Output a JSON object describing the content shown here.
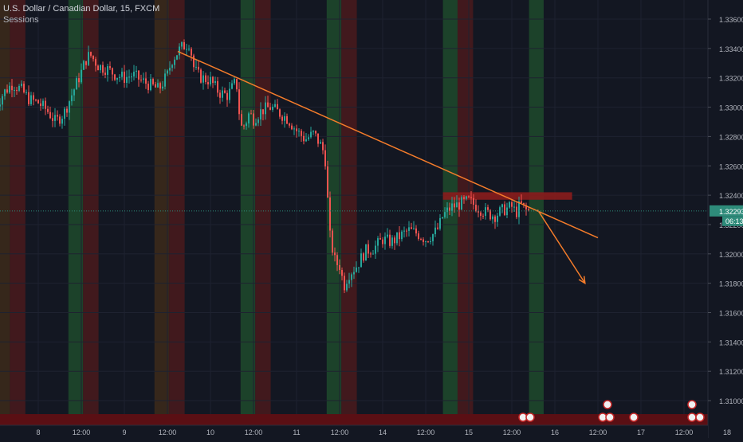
{
  "header": {
    "title": "U.S. Dollar / Canadian Dollar, 15, FXCM",
    "study": "Sessions"
  },
  "price_tag": {
    "value": "1.32293",
    "countdown": "06:13"
  },
  "colors": {
    "background": "#131722",
    "up": "#26a69a",
    "down": "#ef5350",
    "session_green": "#1f4a2c",
    "session_red": "#4a1a1c",
    "session_orange": "#3d2a1a",
    "trendline": "#f57c2a",
    "resistance_zone": "#8a1c1c",
    "price_line": "#2e8b7a",
    "axis_text": "#b2b5be"
  },
  "chart_data": {
    "type": "candlestick",
    "symbol": "USDCAD",
    "timeframe": "15",
    "source": "FXCM",
    "y_axis": {
      "range": [
        1.3085,
        1.3375
      ],
      "tick_labels": [
        "1.33600",
        "1.33400",
        "1.33200",
        "1.33000",
        "1.32800",
        "1.32600",
        "1.32400",
        "1.32200",
        "1.32000",
        "1.31800",
        "1.31600",
        "1.31400",
        "1.31200",
        "1.31000"
      ],
      "ticks": [
        1.336,
        1.334,
        1.332,
        1.33,
        1.328,
        1.326,
        1.324,
        1.322,
        1.32,
        1.318,
        1.316,
        1.314,
        1.312,
        1.31
      ]
    },
    "x_axis": {
      "tick_labels": [
        "8",
        "12:00",
        "9",
        "12:00",
        "10",
        "12:00",
        "11",
        "12:00",
        "14",
        "12:00",
        "15",
        "12:00",
        "16",
        "12:00",
        "17",
        "12:00",
        "18"
      ],
      "tick_positions": [
        0.5,
        1,
        1.5,
        2,
        2.5,
        3,
        3.5,
        4,
        4.5,
        5,
        5.5,
        6,
        6.5,
        7,
        7.5,
        8,
        8.5
      ],
      "unit": "days (0.5 = 12h)"
    },
    "price_path": [
      [
        0.0,
        1.33
      ],
      [
        0.1,
        1.331
      ],
      [
        0.2,
        1.3316
      ],
      [
        0.3,
        1.3312
      ],
      [
        0.4,
        1.3305
      ],
      [
        0.5,
        1.3303
      ],
      [
        0.6,
        1.3298
      ],
      [
        0.7,
        1.329
      ],
      [
        0.8,
        1.3296
      ],
      [
        0.9,
        1.331
      ],
      [
        1.0,
        1.3324
      ],
      [
        1.05,
        1.3332
      ],
      [
        1.1,
        1.3336
      ],
      [
        1.15,
        1.3332
      ],
      [
        1.2,
        1.3328
      ],
      [
        1.3,
        1.3326
      ],
      [
        1.4,
        1.3322
      ],
      [
        1.5,
        1.332
      ],
      [
        1.6,
        1.3322
      ],
      [
        1.7,
        1.3318
      ],
      [
        1.8,
        1.3315
      ],
      [
        1.9,
        1.3312
      ],
      [
        2.0,
        1.3322
      ],
      [
        2.05,
        1.3332
      ],
      [
        2.1,
        1.3336
      ],
      [
        2.15,
        1.334
      ],
      [
        2.2,
        1.3342
      ],
      [
        2.25,
        1.3344
      ],
      [
        2.28,
        1.3336
      ],
      [
        2.3,
        1.3328
      ],
      [
        2.35,
        1.3322
      ],
      [
        2.4,
        1.332
      ],
      [
        2.5,
        1.3318
      ],
      [
        2.6,
        1.331
      ],
      [
        2.7,
        1.3308
      ],
      [
        2.8,
        1.3318
      ],
      [
        2.85,
        1.3286
      ],
      [
        2.9,
        1.3288
      ],
      [
        2.95,
        1.3296
      ],
      [
        3.0,
        1.3292
      ],
      [
        3.1,
        1.3298
      ],
      [
        3.2,
        1.33
      ],
      [
        3.3,
        1.3296
      ],
      [
        3.4,
        1.3292
      ],
      [
        3.5,
        1.3284
      ],
      [
        3.6,
        1.3278
      ],
      [
        3.7,
        1.3282
      ],
      [
        3.8,
        1.3272
      ],
      [
        3.85,
        1.326
      ],
      [
        3.87,
        1.3218
      ],
      [
        3.9,
        1.3208
      ],
      [
        3.95,
        1.3194
      ],
      [
        4.0,
        1.3192
      ],
      [
        4.05,
        1.3178
      ],
      [
        4.1,
        1.3186
      ],
      [
        4.2,
        1.3192
      ],
      [
        4.3,
        1.3202
      ],
      [
        4.4,
        1.3204
      ],
      [
        4.5,
        1.321
      ],
      [
        4.6,
        1.3208
      ],
      [
        4.7,
        1.3212
      ],
      [
        4.8,
        1.3216
      ],
      [
        4.9,
        1.3214
      ],
      [
        5.0,
        1.321
      ],
      [
        5.1,
        1.3214
      ],
      [
        5.15,
        1.3218
      ],
      [
        5.2,
        1.3226
      ],
      [
        5.3,
        1.3232
      ],
      [
        5.4,
        1.3234
      ],
      [
        5.5,
        1.3236
      ],
      [
        5.6,
        1.3232
      ],
      [
        5.7,
        1.3228
      ],
      [
        5.8,
        1.3226
      ],
      [
        5.9,
        1.323
      ],
      [
        6.0,
        1.3232
      ],
      [
        6.05,
        1.3228
      ],
      [
        6.1,
        1.3234
      ],
      [
        6.15,
        1.323
      ],
      [
        6.2,
        1.3229
      ]
    ],
    "sessions": [
      {
        "start": 0.0,
        "end": 0.17,
        "color": "orange"
      },
      {
        "start": 0.17,
        "end": 0.35,
        "color": "red"
      },
      {
        "start": 0.85,
        "end": 1.02,
        "color": "green"
      },
      {
        "start": 1.02,
        "end": 1.2,
        "color": "red"
      },
      {
        "start": 1.85,
        "end": 2.02,
        "color": "orange"
      },
      {
        "start": 2.02,
        "end": 2.2,
        "color": "red"
      },
      {
        "start": 2.85,
        "end": 3.02,
        "color": "green"
      },
      {
        "start": 3.02,
        "end": 3.2,
        "color": "red"
      },
      {
        "start": 3.85,
        "end": 4.02,
        "color": "green"
      },
      {
        "start": 4.02,
        "end": 4.2,
        "color": "red"
      },
      {
        "start": 5.2,
        "end": 5.37,
        "color": "green"
      },
      {
        "start": 5.37,
        "end": 5.55,
        "color": "red"
      },
      {
        "start": 6.2,
        "end": 6.37,
        "color": "green"
      }
    ],
    "annotations": {
      "trendline": {
        "x1": 2.12,
        "y1": 1.3338,
        "x2": 7.0,
        "y2": 1.3211
      },
      "resistance_zone": {
        "x1": 5.2,
        "x2": 6.7,
        "y1": 1.3238,
        "y2": 1.3242
      },
      "projection_arrow": {
        "x1": 6.3,
        "y1": 1.323,
        "x2": 6.85,
        "y2": 1.318
      }
    },
    "current_price": 1.32293,
    "grid": true,
    "legend_position": "top-left"
  }
}
